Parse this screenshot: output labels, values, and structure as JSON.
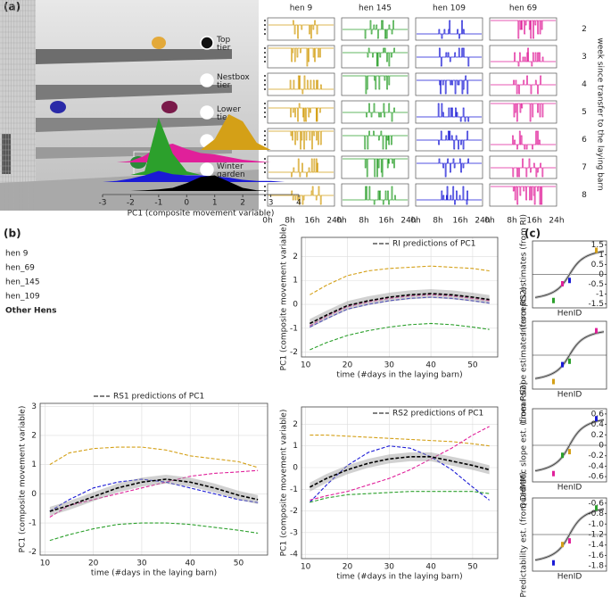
{
  "panel_a": {
    "label": "(a)",
    "tiers": [
      "Top tier",
      "Nestbox tier",
      "Lower tier",
      "Litter floor",
      "Winter garden"
    ],
    "hens": [
      {
        "name": "hen  9",
        "color": "#d4a017"
      },
      {
        "name": "hen  145",
        "color": "#2ca02c"
      },
      {
        "name": "hen  109",
        "color": "#1a1ad6"
      },
      {
        "name": "hen  69",
        "color": "#e0209a"
      }
    ],
    "weeks": [
      "2",
      "3",
      "4",
      "5",
      "6",
      "7",
      "8"
    ],
    "hours": [
      "0h",
      "8h",
      "16h",
      "24h"
    ],
    "week_axis_label": "week since transfer to the laying barn"
  },
  "panel_b": {
    "label": "(b)",
    "ridge": {
      "x": [
        -3,
        -2.5,
        -2,
        -1.5,
        -1,
        -0.5,
        0,
        0.5,
        1,
        1.5,
        2,
        2.5,
        3,
        3.5,
        4
      ],
      "groups": [
        {
          "name": "hen  9",
          "color": "#d4a017",
          "values": [
            0,
            0,
            0,
            0,
            0,
            0,
            0,
            0,
            0.3,
            1.0,
            0.8,
            0.2,
            0,
            0,
            0
          ]
        },
        {
          "name": "hen_69",
          "color": "#e0209a",
          "values": [
            0,
            0,
            0.05,
            0.25,
            0.6,
            0.7,
            0.5,
            0.35,
            0.3,
            0.2,
            0.1,
            0.05,
            0,
            0,
            0
          ]
        },
        {
          "name": "hen_145",
          "color": "#2ca02c",
          "values": [
            0,
            0,
            0,
            0.1,
            1.6,
            0.6,
            0.1,
            0,
            0,
            0,
            0,
            0,
            0,
            0,
            0
          ]
        },
        {
          "name": "hen_109",
          "color": "#1a1ad6",
          "values": [
            0,
            0.05,
            0.15,
            0.3,
            0.5,
            0.35,
            0.3,
            0.3,
            0.25,
            0.2,
            0.1,
            0.05,
            0.05,
            0,
            0
          ]
        },
        {
          "name": "Other Hens",
          "color": "#000000",
          "values": [
            0,
            0,
            0,
            0.02,
            0.05,
            0.1,
            0.25,
            0.45,
            0.5,
            0.3,
            0.1,
            0.02,
            0,
            0,
            0
          ]
        }
      ],
      "xlim": [
        -3,
        4
      ],
      "xticks": [
        -3,
        -2,
        -1,
        0,
        1,
        2,
        3,
        4
      ],
      "xlabel": "PC1 (composite movement variable)"
    },
    "plots": [
      {
        "legend": "RI predictions of PC1",
        "ylabel": "PC1 (composite movement variable)",
        "xlabel": "time (#days in the laying barn)",
        "xlim": [
          9,
          56
        ],
        "xticks": [
          10,
          20,
          30,
          40,
          50
        ],
        "ylim": [
          -2.2,
          2.8
        ],
        "yticks": [
          -2,
          -1,
          0,
          1,
          2
        ],
        "x": [
          11,
          15,
          20,
          25,
          30,
          35,
          40,
          45,
          50,
          54
        ],
        "series": [
          {
            "color": "#d4a017",
            "values": [
              0.4,
              0.8,
              1.2,
              1.4,
              1.5,
              1.55,
              1.6,
              1.55,
              1.5,
              1.4
            ]
          },
          {
            "color": "#e0209a",
            "values": [
              -0.9,
              -0.5,
              -0.1,
              0.1,
              0.25,
              0.35,
              0.4,
              0.35,
              0.25,
              0.15
            ]
          },
          {
            "color": "#1a1ad6",
            "values": [
              -0.95,
              -0.6,
              -0.2,
              0,
              0.15,
              0.25,
              0.3,
              0.25,
              0.15,
              0.05
            ]
          },
          {
            "color": "#2ca02c",
            "values": [
              -1.9,
              -1.6,
              -1.3,
              -1.1,
              -0.95,
              -0.85,
              -0.8,
              -0.85,
              -0.95,
              -1.05
            ]
          },
          {
            "color": "#000000",
            "values": [
              -0.8,
              -0.45,
              -0.05,
              0.15,
              0.3,
              0.4,
              0.45,
              0.4,
              0.3,
              0.2
            ]
          }
        ]
      },
      {
        "legend": "RS1 predictions of PC1",
        "ylabel": "PC1 (composite movement variable)",
        "xlabel": "time (#days in the laying barn)",
        "xlim": [
          9,
          56
        ],
        "xticks": [
          10,
          20,
          30,
          40,
          50
        ],
        "ylim": [
          -2.1,
          3.1
        ],
        "yticks": [
          -2,
          -1,
          0,
          1,
          2,
          3
        ],
        "x": [
          11,
          15,
          20,
          25,
          30,
          35,
          40,
          45,
          50,
          54
        ],
        "series": [
          {
            "color": "#d4a017",
            "values": [
              1.0,
              1.4,
              1.55,
              1.6,
              1.6,
              1.5,
              1.3,
              1.2,
              1.1,
              0.9
            ]
          },
          {
            "color": "#e0209a",
            "values": [
              -0.8,
              -0.4,
              -0.2,
              0,
              0.2,
              0.4,
              0.6,
              0.7,
              0.75,
              0.8
            ]
          },
          {
            "color": "#1a1ad6",
            "values": [
              -0.6,
              -0.2,
              0.2,
              0.4,
              0.5,
              0.4,
              0.2,
              0,
              -0.2,
              -0.3
            ]
          },
          {
            "color": "#2ca02c",
            "values": [
              -1.6,
              -1.4,
              -1.2,
              -1.05,
              -1.0,
              -1.0,
              -1.05,
              -1.15,
              -1.25,
              -1.35
            ]
          },
          {
            "color": "#000000",
            "values": [
              -0.6,
              -0.4,
              -0.1,
              0.2,
              0.4,
              0.5,
              0.4,
              0.2,
              -0.05,
              -0.2
            ]
          }
        ]
      },
      {
        "legend": "RS2 predictions of PC1",
        "ylabel": "PC1 (composite movement variable)",
        "xlabel": "time (#days in the laying barn)",
        "xlim": [
          9,
          56
        ],
        "xticks": [
          10,
          20,
          30,
          40,
          50
        ],
        "ylim": [
          -4.2,
          2.8
        ],
        "yticks": [
          -4,
          -3,
          -2,
          -1,
          0,
          1,
          2
        ],
        "x": [
          11,
          15,
          20,
          25,
          30,
          35,
          40,
          45,
          50,
          54
        ],
        "series": [
          {
            "color": "#d4a017",
            "values": [
              1.5,
              1.5,
              1.45,
              1.4,
              1.35,
              1.3,
              1.25,
              1.2,
              1.1,
              1.0
            ]
          },
          {
            "color": "#e0209a",
            "values": [
              -1.5,
              -1.3,
              -1.1,
              -0.8,
              -0.5,
              -0.1,
              0.4,
              0.9,
              1.5,
              1.9
            ]
          },
          {
            "color": "#1a1ad6",
            "values": [
              -1.6,
              -0.8,
              0.1,
              0.7,
              1.0,
              0.9,
              0.5,
              -0.1,
              -0.9,
              -1.5
            ]
          },
          {
            "color": "#2ca02c",
            "values": [
              -1.6,
              -1.4,
              -1.25,
              -1.2,
              -1.15,
              -1.1,
              -1.1,
              -1.1,
              -1.1,
              -1.2
            ]
          },
          {
            "color": "#000000",
            "values": [
              -0.9,
              -0.5,
              -0.1,
              0.2,
              0.4,
              0.5,
              0.5,
              0.3,
              0.1,
              -0.1
            ]
          }
        ]
      }
    ]
  },
  "panel_c": {
    "label": "(c)",
    "plots": [
      {
        "ylabel": "Intercepts estimates (from RI)",
        "xlabel": "HenID",
        "ylim": [
          -1.7,
          1.7
        ],
        "yticks": [
          1.5,
          1,
          0.5,
          0,
          -0.5,
          -1,
          -1.5
        ]
      },
      {
        "ylabel": "Linear slope estimates (from RS2)",
        "xlabel": "HenID"
      },
      {
        "ylabel": "Quadratic slope est. (from RS2)",
        "xlabel": "HenID",
        "ylim": [
          -0.7,
          0.7
        ],
        "yticks": [
          0.6,
          0.4,
          0.2,
          0,
          -0.2,
          -0.4,
          -0.6
        ]
      },
      {
        "ylabel": "Predictability est. (from DHMM)",
        "xlabel": "HenID",
        "ylim": [
          -1.9,
          -0.5
        ],
        "yticks": [
          -0.6,
          -0.8,
          {
            "value": -1,
            "label": "-1.0"
          },
          -1.2,
          -1.4,
          -1.6,
          -1.8
        ]
      }
    ]
  }
}
